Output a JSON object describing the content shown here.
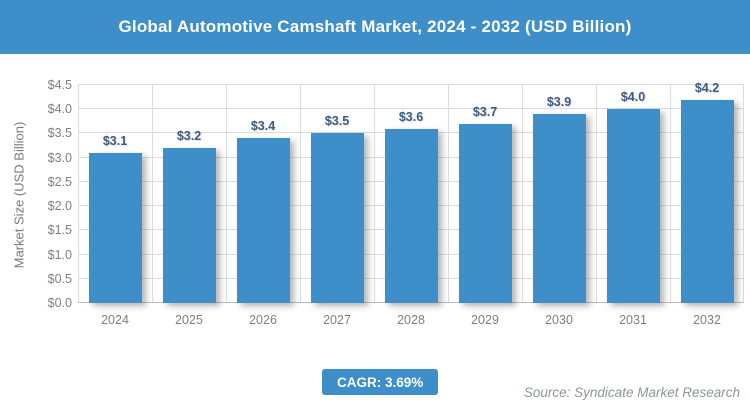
{
  "header": {
    "title": "Global Automotive Camshaft Market, 2024 - 2032 (USD Billion)"
  },
  "chart_data": {
    "type": "bar",
    "title": "Global Automotive Camshaft Market, 2024 - 2032 (USD Billion)",
    "categories": [
      "2024",
      "2025",
      "2026",
      "2027",
      "2028",
      "2029",
      "2030",
      "2031",
      "2032"
    ],
    "values": [
      3.1,
      3.2,
      3.4,
      3.5,
      3.6,
      3.7,
      3.9,
      4.0,
      4.2
    ],
    "value_labels": [
      "$3.1",
      "$3.2",
      "$3.4",
      "$3.5",
      "$3.6",
      "$3.7",
      "$3.9",
      "$4.0",
      "$4.2"
    ],
    "xlabel": "",
    "ylabel": "Market Size (USD Billion)",
    "ylim": [
      0,
      4.5
    ],
    "ytick_step": 0.5,
    "ytick_labels": [
      "$0.0",
      "$0.5",
      "$1.0",
      "$1.5",
      "$2.0",
      "$2.5",
      "$3.0",
      "$3.5",
      "$4.0",
      "$4.5"
    ],
    "grid": true,
    "legend": "none",
    "bar_color": "#3D8EC9",
    "value_label_color": "#3E5C7E"
  },
  "footer": {
    "cagr_label": "CAGR: 3.69%",
    "source": "Source: Syndicate Market Research"
  },
  "colors": {
    "accent_blue": "#3D8EC9",
    "axis_text": "#7F7F7F",
    "gridline": "#DCDCDC",
    "title_text": "#FFFFFF"
  }
}
